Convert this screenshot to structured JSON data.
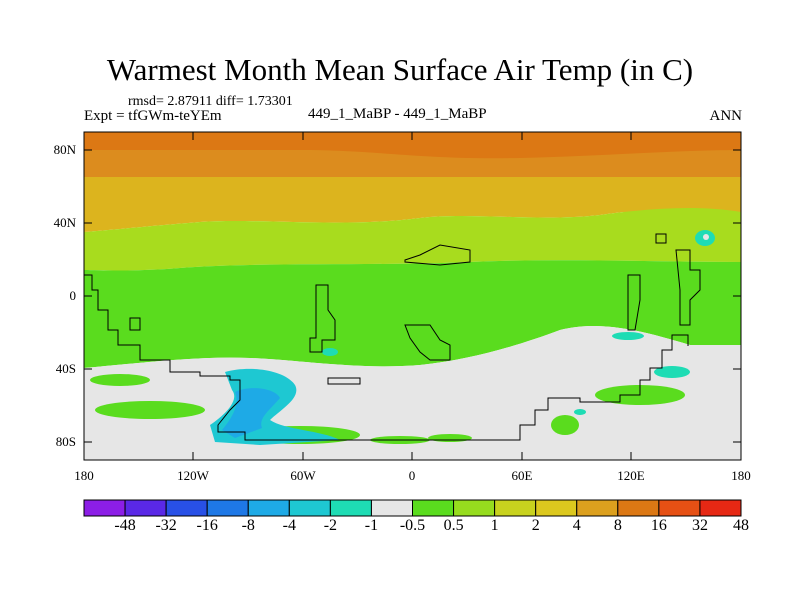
{
  "title": "Warmest Month Mean Surface Air Temp (in C)",
  "stats_line": "rmsd= 2.87911  diff= 1.73301",
  "experiment": "Expt = tfGWm-teYEm",
  "case_label": "449_1_MaBP - 449_1_MaBP",
  "season": "ANN",
  "y_axis": {
    "ticks": [
      "80N",
      "40N",
      "0",
      "40S",
      "80S"
    ]
  },
  "x_axis": {
    "ticks": [
      "180",
      "120W",
      "60W",
      "0",
      "60E",
      "120E",
      "180"
    ]
  },
  "colorbar": {
    "colors": [
      "#8c1ee6",
      "#5a28e6",
      "#2850e6",
      "#1e78e6",
      "#1eaae6",
      "#1ec8d2",
      "#1edcb4",
      "#e6e6e6",
      "#5adc1e",
      "#96dc1e",
      "#c8d21e",
      "#dcc81e",
      "#dca01e",
      "#dc7814",
      "#e65014",
      "#e62814"
    ],
    "labels": [
      "-48",
      "-32",
      "-16",
      "-8",
      "-4",
      "-2",
      "-1",
      "-0.5",
      "0.5",
      "1",
      "2",
      "4",
      "8",
      "16",
      "32",
      "48"
    ]
  }
}
